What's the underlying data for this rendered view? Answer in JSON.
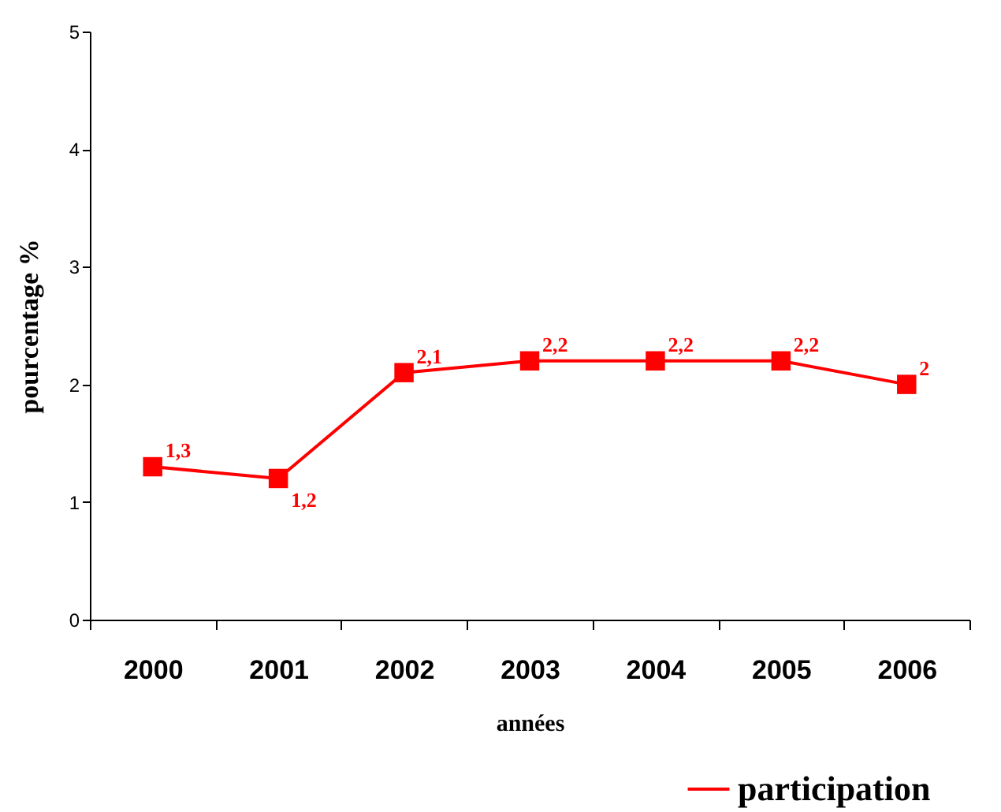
{
  "chart_data": {
    "type": "line",
    "categories": [
      "2000",
      "2001",
      "2002",
      "2003",
      "2004",
      "2005",
      "2006"
    ],
    "series": [
      {
        "name": "participation",
        "color": "#ff0000",
        "values": [
          1.3,
          1.2,
          2.1,
          2.2,
          2.2,
          2.2,
          2.0
        ],
        "value_labels": [
          "1,3",
          "1,2",
          "2,1",
          "2,2",
          "2,2",
          "2,2",
          "2"
        ]
      }
    ],
    "xlabel": "années",
    "ylabel": "pourcentage %",
    "ylim": [
      0,
      5
    ],
    "yticks": [
      0,
      1,
      2,
      3,
      4,
      5
    ],
    "marker": "square",
    "legend": "bottom right"
  }
}
